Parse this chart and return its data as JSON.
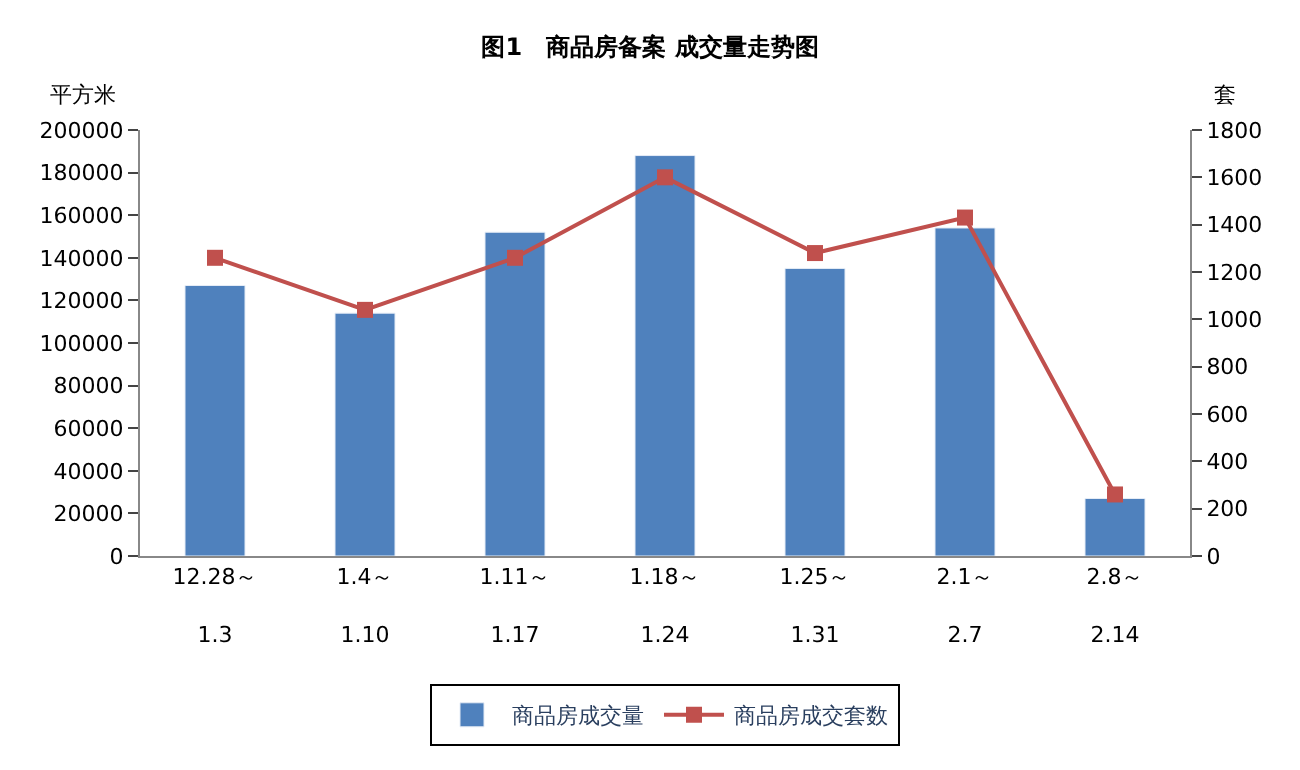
{
  "chart_data": {
    "type": "bar",
    "title": "图1　商品房备案 成交量走势图",
    "ylabel": "平方米",
    "y2label": "套",
    "categories": [
      "12.28～\n1.3",
      "1.4～\n1.10",
      "1.11～\n1.17",
      "1.18～\n1.24",
      "1.25～\n1.31",
      "2.1～\n2.7",
      "2.8～\n2.14"
    ],
    "series": [
      {
        "name": "商品房成交量",
        "color": "#4f81bd",
        "values": [
          127000,
          114000,
          152000,
          188000,
          135000,
          154000,
          27000
        ]
      },
      {
        "name": "商品房成交套数",
        "color": "#c0504d",
        "type": "line",
        "axis": "y2",
        "marker": "square",
        "values": [
          1260,
          1040,
          1260,
          1600,
          1280,
          1430,
          260
        ]
      }
    ],
    "ylim": [
      0,
      200000
    ],
    "yticks": [
      0,
      20000,
      40000,
      60000,
      80000,
      100000,
      120000,
      140000,
      160000,
      180000,
      200000
    ],
    "y2lim": [
      0,
      1800
    ],
    "y2ticks": [
      0,
      200,
      400,
      600,
      800,
      1000,
      1200,
      1400,
      1600,
      1800
    ],
    "grid": false,
    "legend": "bottom"
  }
}
